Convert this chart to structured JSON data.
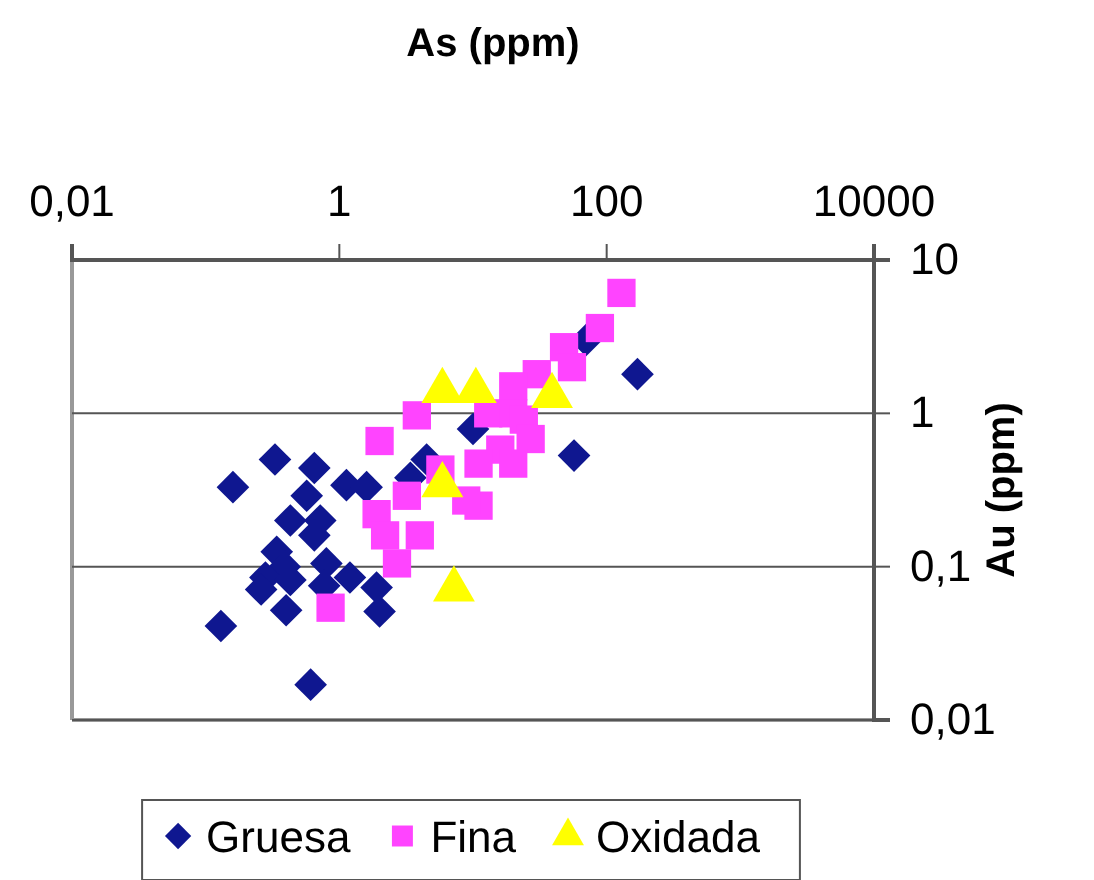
{
  "chart_data": {
    "type": "scatter",
    "xlabel": "As (ppm)",
    "ylabel": "Au (ppm)",
    "log": "xy",
    "xlim": [
      0.01,
      10000
    ],
    "ylim": [
      0.01,
      10
    ],
    "xticks": [
      {
        "value": 0.01,
        "label": "0,01"
      },
      1,
      100,
      10000
    ],
    "yticks": [
      {
        "value": 0.01,
        "label": "0,01"
      },
      {
        "value": 0.1,
        "label": "0,1"
      },
      1,
      10
    ],
    "grid": "y",
    "legend": "bottom",
    "series": [
      {
        "name": "Gruesa",
        "color": "#0f1790",
        "marker": "diamond",
        "x": [
          0.33,
          0.65,
          0.16,
          0.57,
          1.13,
          1.6,
          3.4,
          4.5,
          10,
          0.43,
          0.72,
          0.65,
          0.34,
          0.39,
          0.28,
          0.43,
          0.26,
          0.8,
          1.2,
          0.77,
          1.9,
          0.4,
          2.0,
          0.13,
          0.61,
          70,
          170,
          57
        ],
        "values": [
          0.5,
          0.44,
          0.33,
          0.29,
          0.34,
          0.33,
          0.38,
          0.5,
          0.79,
          0.2,
          0.2,
          0.16,
          0.125,
          0.1,
          0.085,
          0.082,
          0.071,
          0.105,
          0.085,
          0.075,
          0.073,
          0.052,
          0.051,
          0.041,
          0.017,
          3.0,
          1.8,
          0.53
        ]
      },
      {
        "name": "Fina",
        "color": "#ff44ff",
        "marker": "square",
        "x": [
          129,
          89,
          48,
          55,
          30,
          20,
          13,
          20,
          24,
          27,
          16,
          20,
          11,
          3.8,
          2.0,
          5.7,
          3.2,
          1.9,
          11,
          8.9,
          4.0,
          2.2,
          2.7,
          0.86
        ],
        "values": [
          6.1,
          3.6,
          2.7,
          2.0,
          1.8,
          1.5,
          1.0,
          1.0,
          0.91,
          0.68,
          0.58,
          0.47,
          0.47,
          0.97,
          0.66,
          0.43,
          0.29,
          0.22,
          0.25,
          0.27,
          0.16,
          0.16,
          0.105,
          0.054
        ]
      },
      {
        "name": "Oxidada",
        "color": "#ffff00",
        "marker": "triangle",
        "x": [
          5.9,
          10.5,
          39,
          5.9,
          7.2
        ],
        "values": [
          1.4,
          1.4,
          1.3,
          0.34,
          0.071
        ]
      }
    ]
  }
}
